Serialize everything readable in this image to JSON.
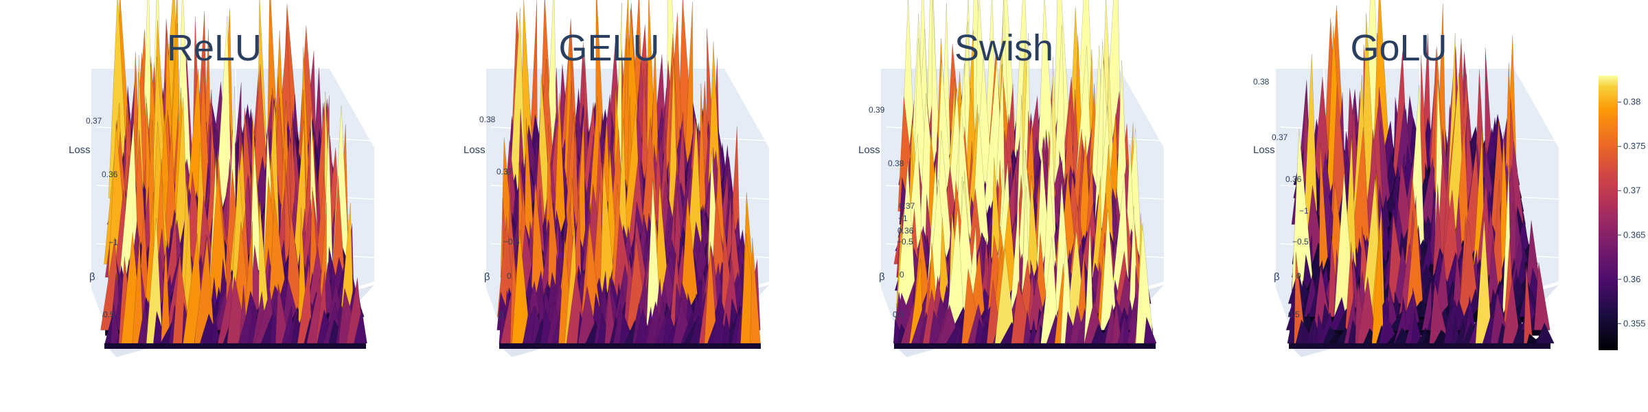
{
  "chart_data": [
    {
      "type": "surface3d",
      "title": "ReLU",
      "zlabel": "Loss",
      "ylabel": "β",
      "z_ticks": [
        "0.37",
        "0.36"
      ],
      "y_ticks": [
        "−1",
        "0.5"
      ],
      "z_range": [
        0.352,
        0.382
      ],
      "z_base": 0.356,
      "spike_density": 0.62,
      "seed": 11
    },
    {
      "type": "surface3d",
      "title": "GELU",
      "zlabel": "Loss",
      "ylabel": "β",
      "z_ticks": [
        "0.38",
        "0.37"
      ],
      "y_ticks": [
        "−0.5",
        "0",
        "0"
      ],
      "z_range": [
        0.352,
        0.382
      ],
      "z_base": 0.357,
      "spike_density": 0.55,
      "seed": 23
    },
    {
      "type": "surface3d",
      "title": "Swish",
      "zlabel": "Loss",
      "ylabel": "β",
      "z_ticks": [
        "0.39",
        "0.38",
        "0.37",
        "0.36"
      ],
      "y_ticks": [
        "−1",
        "−0.5",
        "0",
        "0.5"
      ],
      "z_range": [
        0.352,
        0.392
      ],
      "z_base": 0.358,
      "spike_density": 0.6,
      "seed": 37
    },
    {
      "type": "surface3d",
      "title": "GoLU",
      "zlabel": "Loss",
      "ylabel": "β",
      "z_ticks": [
        "0.38",
        "0.37",
        "0.36"
      ],
      "y_ticks": [
        "−1",
        "−0.5",
        "0",
        "0.5"
      ],
      "z_range": [
        0.352,
        0.382
      ],
      "z_base": 0.354,
      "spike_density": 0.4,
      "seed": 53
    }
  ],
  "colorbar": {
    "colorscale": "Inferno",
    "range": [
      0.352,
      0.383
    ],
    "ticks": [
      "0.38",
      "0.375",
      "0.37",
      "0.365",
      "0.36",
      "0.355"
    ],
    "tick_values": [
      0.38,
      0.375,
      0.37,
      0.365,
      0.36,
      0.355
    ]
  }
}
